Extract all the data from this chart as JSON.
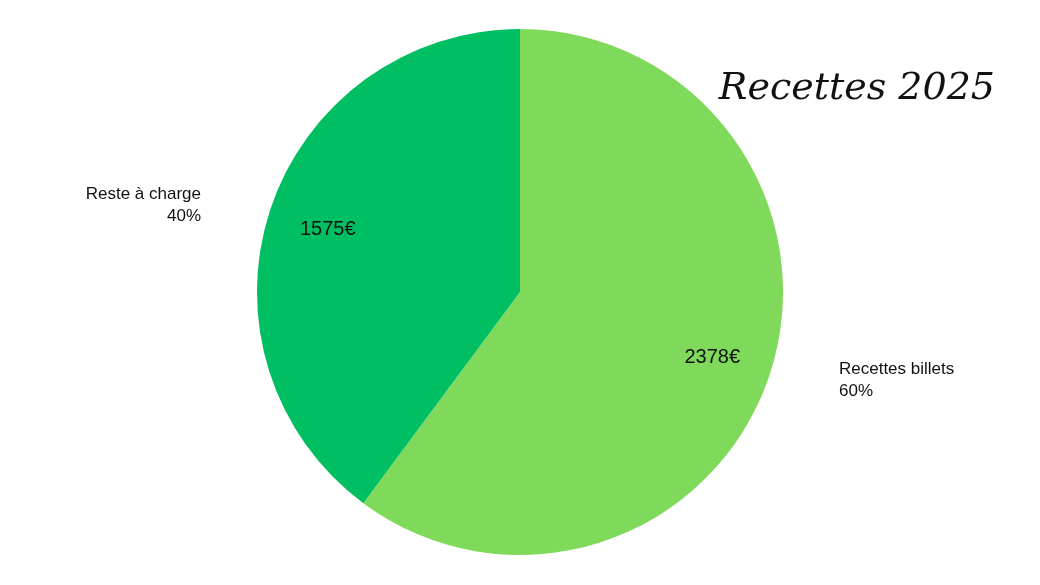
{
  "chart_data": {
    "type": "pie",
    "title": "Recettes 2025",
    "categories": [
      "Recettes billets\n60%",
      "Reste à charge\n40%"
    ],
    "values": [
      2378,
      1575
    ],
    "colors": [
      "#7fd95a",
      "#00bf63"
    ],
    "value_labels": [
      "2378€",
      "1575€"
    ],
    "legend": false
  }
}
